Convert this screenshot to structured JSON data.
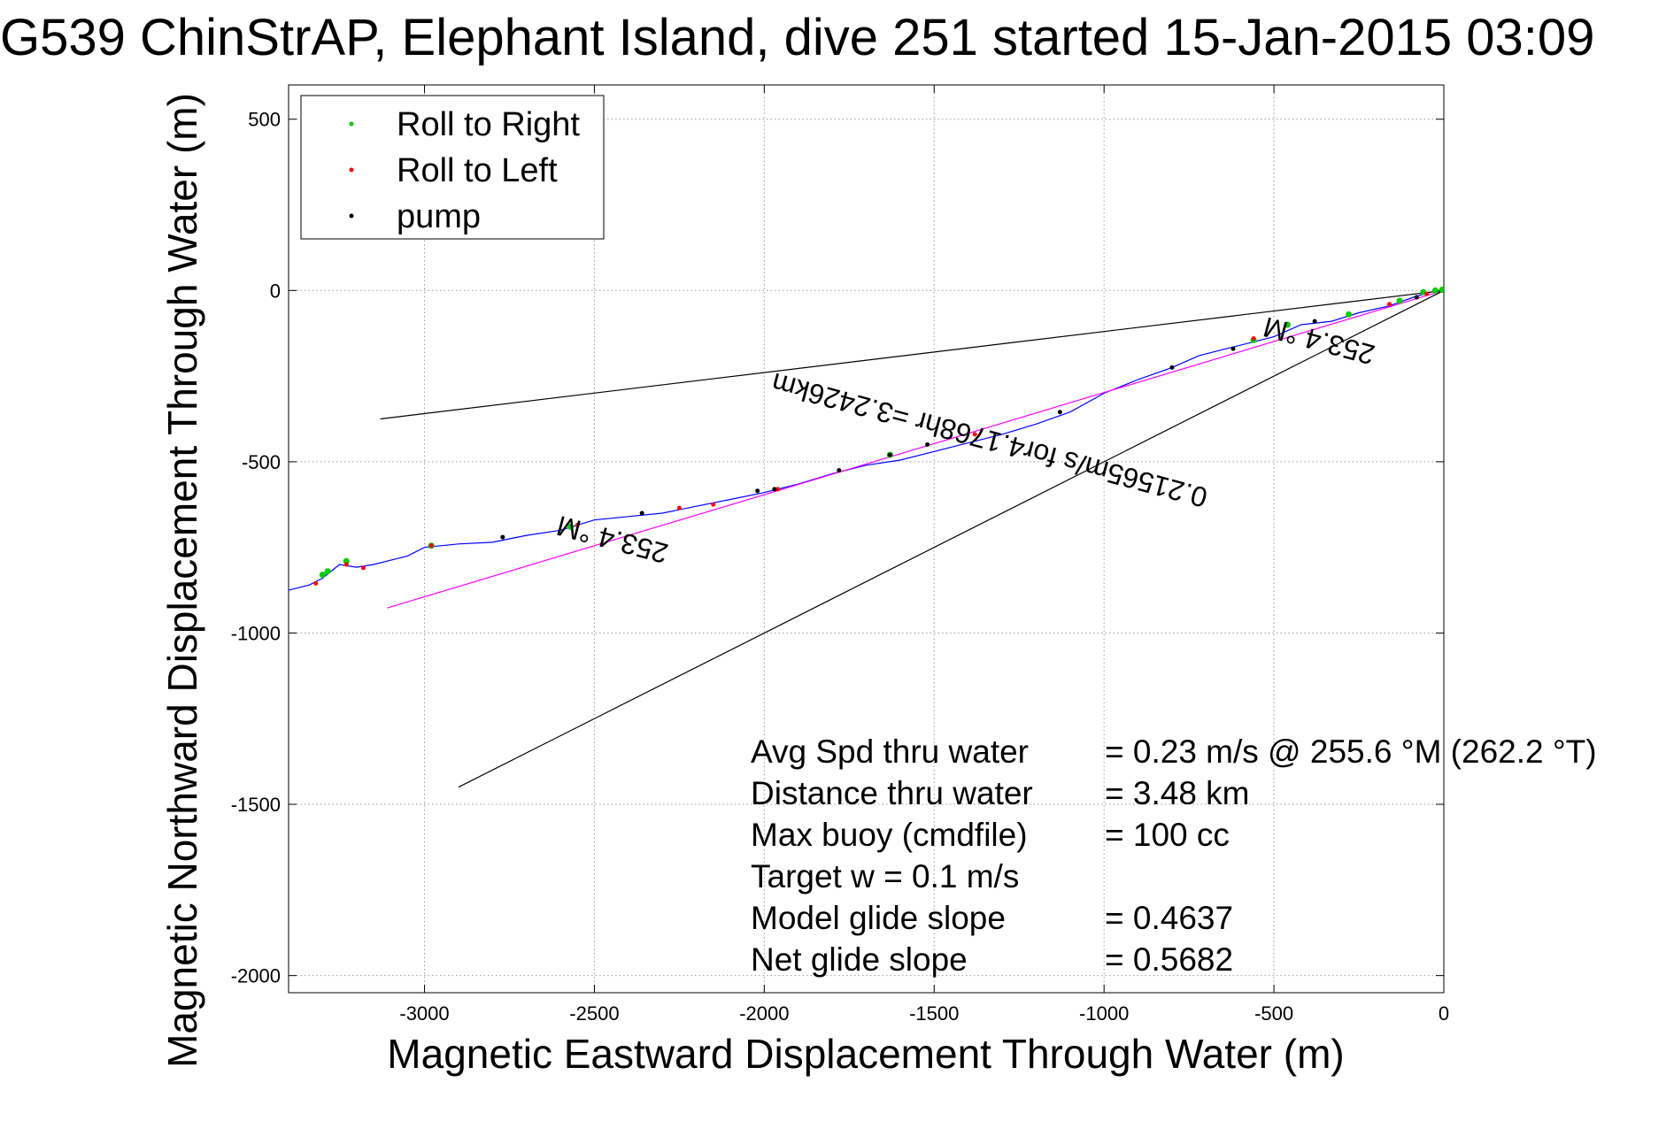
{
  "chart_data": {
    "type": "line",
    "title": "G539 ChinStrAP, Elephant Island, dive 251 started 15-Jan-2015 03:09",
    "xlabel": "Magnetic Eastward Displacement Through Water (m)",
    "ylabel": "Magnetic Northward Displacement Through Water (m)",
    "xlim": [
      -3400,
      0
    ],
    "ylim": [
      -2050,
      600
    ],
    "xticks": [
      -3000,
      -2500,
      -2000,
      -1500,
      -1000,
      -500,
      0
    ],
    "xtick_labels": [
      "-3000",
      "-2500",
      "-2000",
      "-1500",
      "-1000",
      "-500",
      "0"
    ],
    "yticks": [
      500,
      0,
      -500,
      -1000,
      -1500,
      -2000
    ],
    "ytick_labels": [
      "500",
      "0",
      "-500",
      "-1000",
      "-1500",
      "-2000"
    ],
    "grid": true,
    "legend": {
      "placement": "top-left",
      "entries": [
        {
          "label": "Roll to Right",
          "color": "#00cc00"
        },
        {
          "label": "Roll to Left",
          "color": "#ff0000"
        },
        {
          "label": "pump",
          "color": "#000000"
        }
      ]
    },
    "series": [
      {
        "color": "#0000ff",
        "x": [
          0,
          -40,
          -90,
          -160,
          -250,
          -330,
          -420,
          -500,
          -560,
          -640,
          -720,
          -800,
          -900,
          -1000,
          -1100,
          -1200,
          -1300,
          -1400,
          -1500,
          -1600,
          -1700,
          -1800,
          -1900,
          -2000,
          -2100,
          -2200,
          -2300,
          -2400,
          -2500,
          -2600,
          -2700,
          -2800,
          -2900,
          -3000,
          -3050,
          -3150,
          -3200,
          -3250,
          -3300,
          -3340,
          -3400
        ],
        "y": [
          0,
          -5,
          -20,
          -45,
          -65,
          -90,
          -100,
          -135,
          -150,
          -170,
          -190,
          -225,
          -260,
          -300,
          -355,
          -390,
          -420,
          -445,
          -470,
          -495,
          -510,
          -535,
          -565,
          -590,
          -610,
          -630,
          -650,
          -660,
          -670,
          -700,
          -715,
          -735,
          -740,
          -750,
          -775,
          -800,
          -808,
          -800,
          -840,
          -860,
          -875
        ]
      },
      {
        "color": "#ff00ff",
        "x": [
          0,
          -3110
        ],
        "y": [
          0,
          -927
        ]
      },
      {
        "color": "#000000",
        "x": [
          -3130,
          0
        ],
        "y": [
          -375,
          0
        ]
      },
      {
        "color": "#000000",
        "x": [
          -2900,
          0
        ],
        "y": [
          -1450,
          0
        ]
      }
    ],
    "markers": {
      "roll_to_right": {
        "color": "#00cc00",
        "x": [
          -5,
          -25,
          -60,
          -130,
          -280,
          -460,
          -560,
          -1630,
          -2570,
          -2980,
          -3230,
          -3285,
          -3300
        ],
        "y": [
          2,
          0,
          -5,
          -30,
          -70,
          -100,
          -145,
          -480,
          -690,
          -745,
          -790,
          -820,
          -830
        ]
      },
      "roll_to_left": {
        "color": "#ff0000",
        "x": [
          -50,
          -160,
          -560,
          -1380,
          -1960,
          -2150,
          -2250,
          -2550,
          -2980,
          -3180,
          -3230,
          -3320
        ],
        "y": [
          -10,
          -40,
          -140,
          -420,
          -580,
          -625,
          -635,
          -685,
          -745,
          -810,
          -800,
          -855
        ]
      },
      "pump": {
        "color": "#000000",
        "x": [
          -80,
          -380,
          -620,
          -800,
          -1130,
          -1520,
          -1630,
          -1780,
          -1970,
          -2020,
          -2360,
          -2770
        ],
        "y": [
          -20,
          -90,
          -170,
          -225,
          -355,
          -450,
          -480,
          -525,
          -580,
          -585,
          -650,
          -720
        ]
      }
    },
    "annotations": [
      {
        "text": "253.4 °M",
        "x": -360,
        "y": -120,
        "rotation": 195
      },
      {
        "text": "0.21565m/s for4.1768hr =3.2426km",
        "x": -1330,
        "y": -410,
        "rotation": 195
      },
      {
        "text": "253.4 °M",
        "x": -2440,
        "y": -700,
        "rotation": 195
      }
    ],
    "stats": [
      {
        "label": "Avg Spd thru water",
        "value": "=  0.23 m/s @ 255.6 °M (262.2 °T)"
      },
      {
        "label": "Distance thru water",
        "value": "=  3.48 km"
      },
      {
        "label": "Max buoy (cmdfile)",
        "value": "= 100 cc"
      },
      {
        "label": "Target w    = 0.1 m/s",
        "value": ""
      },
      {
        "label": "Model glide slope",
        "value": "= 0.4637"
      },
      {
        "label": "Net glide slope",
        "value": "= 0.5682"
      }
    ]
  }
}
